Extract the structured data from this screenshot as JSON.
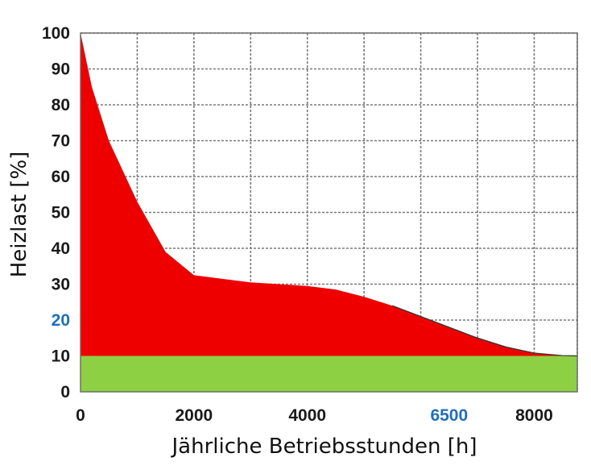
{
  "chart_data": {
    "type": "area",
    "title": "",
    "xlabel": "Jährliche Betriebsstunden [h]",
    "ylabel": "Heizlast [%]",
    "xlim": [
      0,
      8760
    ],
    "ylim": [
      0,
      100
    ],
    "grid": true,
    "legend": "none",
    "x_ticks": [
      {
        "value": 0,
        "label": "0",
        "color": "#1a1a1a"
      },
      {
        "value": 2000,
        "label": "2000",
        "color": "#1a1a1a"
      },
      {
        "value": 4000,
        "label": "4000",
        "color": "#1a1a1a"
      },
      {
        "value": 6500,
        "label": "6500",
        "color": "#1f6fb8"
      },
      {
        "value": 8000,
        "label": "8000",
        "color": "#1a1a1a"
      }
    ],
    "x_grid": [
      0,
      1000,
      2000,
      3000,
      4000,
      5000,
      6000,
      7000,
      8000,
      8760
    ],
    "y_ticks": [
      {
        "value": 0,
        "label": "0",
        "color": "#1a1a1a"
      },
      {
        "value": 10,
        "label": "10",
        "color": "#1a1a1a"
      },
      {
        "value": 20,
        "label": "20",
        "color": "#1f6fb8"
      },
      {
        "value": 30,
        "label": "30",
        "color": "#1a1a1a"
      },
      {
        "value": 40,
        "label": "40",
        "color": "#1a1a1a"
      },
      {
        "value": 50,
        "label": "50",
        "color": "#1a1a1a"
      },
      {
        "value": 60,
        "label": "60",
        "color": "#1a1a1a"
      },
      {
        "value": 70,
        "label": "70",
        "color": "#1a1a1a"
      },
      {
        "value": 80,
        "label": "80",
        "color": "#1a1a1a"
      },
      {
        "value": 90,
        "label": "90",
        "color": "#1a1a1a"
      },
      {
        "value": 100,
        "label": "100",
        "color": "#1a1a1a"
      }
    ],
    "series": [
      {
        "color": "#ee0000",
        "x": [
          0,
          200,
          500,
          1000,
          1500,
          2000,
          2500,
          3000,
          3500,
          4000,
          4500,
          5000,
          5500,
          6000,
          6500,
          7000,
          7500,
          8000,
          8500,
          8760
        ],
        "y": [
          100,
          85,
          70,
          53,
          39,
          32.5,
          31.5,
          30.5,
          30,
          29.5,
          28.5,
          26.5,
          24,
          21,
          18,
          15,
          12.5,
          10.8,
          10.1,
          10
        ]
      },
      {
        "color": "#8ed043",
        "x": [
          0,
          8760
        ],
        "y": [
          10,
          10
        ]
      }
    ]
  }
}
